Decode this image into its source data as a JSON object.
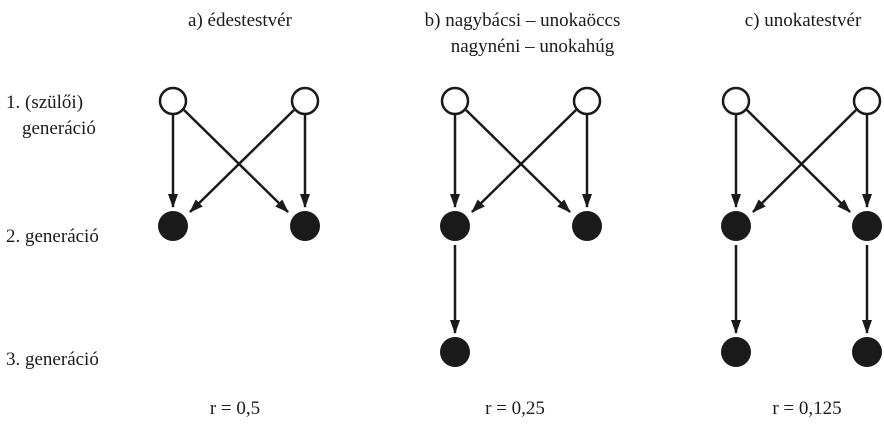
{
  "row_labels": {
    "gen1_line1": "1. (szülői)",
    "gen1_line2": "generáció",
    "gen2": "2. generáció",
    "gen3": "3. generáció"
  },
  "panels": [
    {
      "title_lines": [
        "a) édestestvér"
      ],
      "r": "r = 0,5",
      "parents": [
        "open",
        "open"
      ],
      "children_gen2": [
        "filled",
        "filled"
      ],
      "children_gen3": []
    },
    {
      "title_lines": [
        "b) nagybácsi – unokaöccs",
        "nagynéni – unokahúg"
      ],
      "r": "r = 0,25",
      "parents": [
        "open",
        "open"
      ],
      "children_gen2": [
        "filled",
        "filled"
      ],
      "children_gen3": [
        "filled"
      ]
    },
    {
      "title_lines": [
        "c) unokatestvér"
      ],
      "r": "r = 0,125",
      "parents": [
        "open",
        "open"
      ],
      "children_gen2": [
        "filled",
        "filled"
      ],
      "children_gen3": [
        "filled",
        "filled"
      ]
    }
  ]
}
